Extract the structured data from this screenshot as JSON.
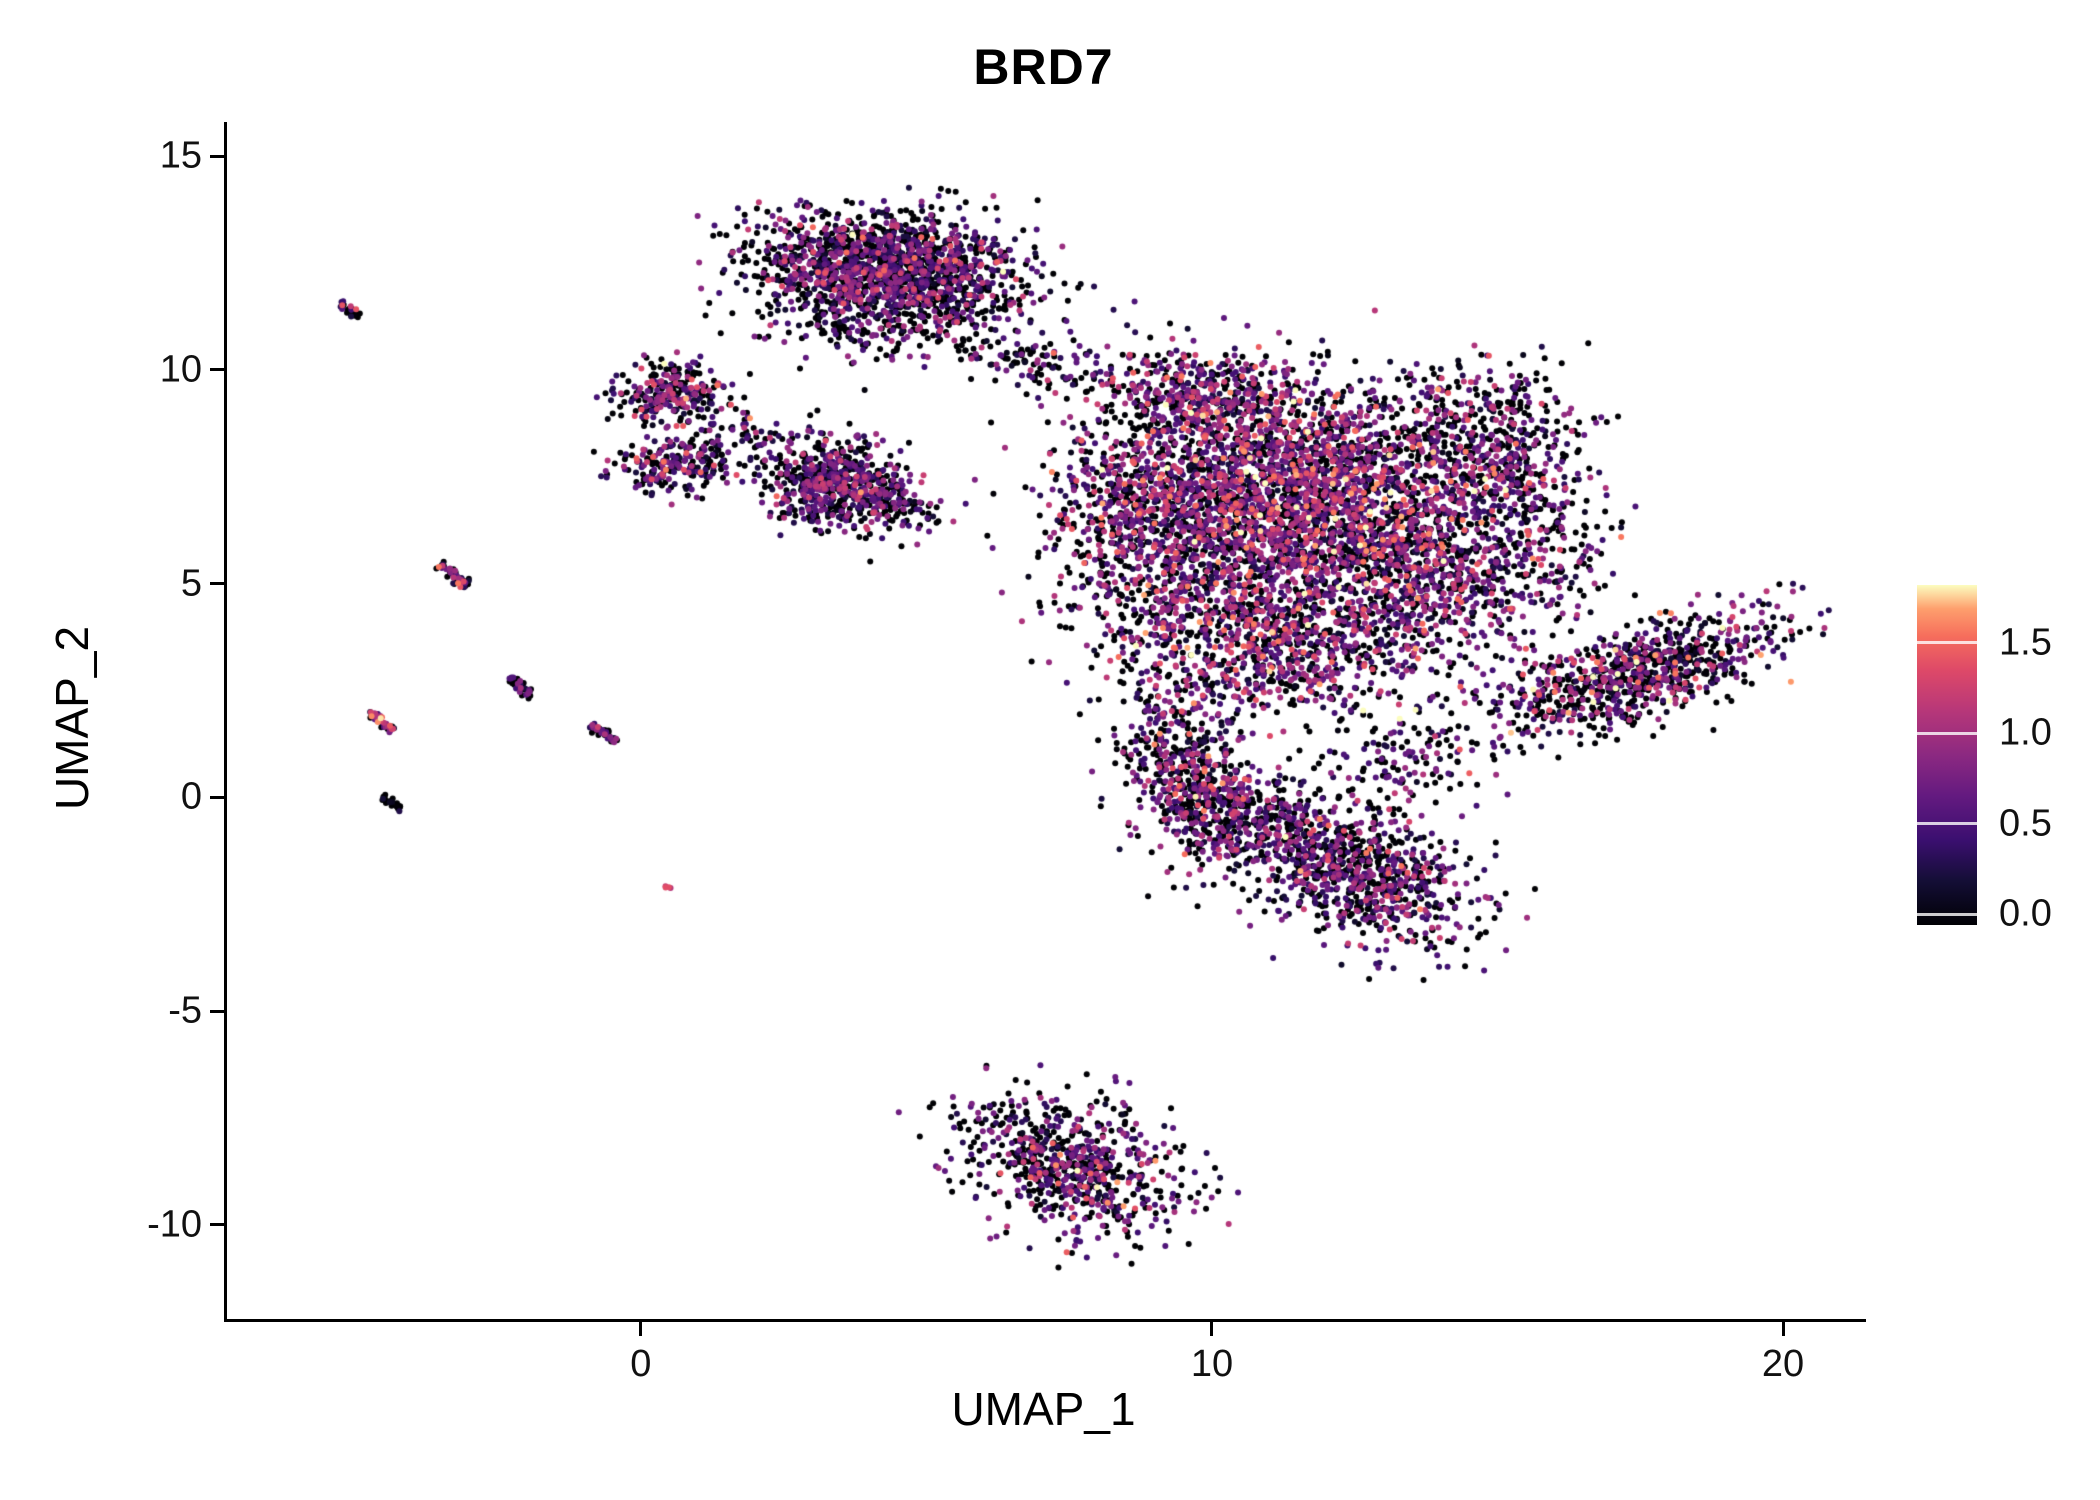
{
  "chart_data": {
    "type": "scatter",
    "title": "BRD7",
    "xlabel": "UMAP_1",
    "ylabel": "UMAP_2",
    "xlim": [
      -7.3,
      21.4
    ],
    "ylim": [
      -12.2,
      15.8
    ],
    "grid": false,
    "xticks": {
      "values": [
        0,
        10,
        20
      ],
      "labels": [
        "0",
        "10",
        "20"
      ]
    },
    "yticks": {
      "values": [
        15,
        10,
        5,
        0,
        -5,
        -10
      ],
      "labels": [
        "15",
        "10",
        "5",
        "0",
        "-5",
        "-10"
      ]
    },
    "legend": {
      "position": "right",
      "vmin": -0.06,
      "vmax": 1.82,
      "ticks": [
        {
          "value": 1.5,
          "label": "1.5"
        },
        {
          "value": 1.0,
          "label": "1.0"
        },
        {
          "value": 0.5,
          "label": "0.5"
        },
        {
          "value": 0.0,
          "label": "0.0"
        }
      ]
    },
    "palette": {
      "name": "magma",
      "stops": [
        {
          "t": 0.0,
          "color": "#000004"
        },
        {
          "t": 0.13,
          "color": "#140e36"
        },
        {
          "t": 0.25,
          "color": "#3b0f70"
        },
        {
          "t": 0.38,
          "color": "#641a80"
        },
        {
          "t": 0.5,
          "color": "#8c2981"
        },
        {
          "t": 0.63,
          "color": "#b73779"
        },
        {
          "t": 0.75,
          "color": "#de4968"
        },
        {
          "t": 0.85,
          "color": "#f66e5c"
        },
        {
          "t": 0.93,
          "color": "#fe9f6d"
        },
        {
          "t": 1.0,
          "color": "#fcfdbf"
        }
      ]
    },
    "point_radius_px": 3.0,
    "seed": 1234,
    "clusters": [
      {
        "name": "top-main",
        "cx": 4.3,
        "cy": 12.4,
        "sx": 1.15,
        "sy": 0.62,
        "rot": -4,
        "n": 1500,
        "zero": 0.38,
        "mean": 0.55,
        "sd": 0.4
      },
      {
        "name": "top-main-south",
        "cx": 4.4,
        "cy": 11.2,
        "sx": 1.3,
        "sy": 0.5,
        "rot": 0,
        "n": 260,
        "zero": 0.45,
        "mean": 0.5,
        "sd": 0.4
      },
      {
        "name": "top-tail",
        "cx": 6.8,
        "cy": 10.2,
        "sx": 0.95,
        "sy": 0.28,
        "rot": -10,
        "n": 110,
        "zero": 0.5,
        "mean": 0.45,
        "sd": 0.4
      },
      {
        "name": "nw-upper",
        "cx": 0.45,
        "cy": 9.4,
        "sx": 0.5,
        "sy": 0.34,
        "rot": 0,
        "n": 270,
        "zero": 0.35,
        "mean": 0.6,
        "sd": 0.42
      },
      {
        "name": "nw-lower",
        "cx": 0.55,
        "cy": 7.8,
        "sx": 0.52,
        "sy": 0.3,
        "rot": 8,
        "n": 230,
        "zero": 0.35,
        "mean": 0.6,
        "sd": 0.42
      },
      {
        "name": "nw-bridge",
        "cx": 1.7,
        "cy": 8.6,
        "sx": 0.45,
        "sy": 0.25,
        "rot": 0,
        "n": 45,
        "zero": 0.45,
        "mean": 0.5,
        "sd": 0.4
      },
      {
        "name": "mid-left",
        "cx": 3.35,
        "cy": 7.4,
        "sx": 0.62,
        "sy": 0.5,
        "rot": -15,
        "n": 650,
        "zero": 0.4,
        "mean": 0.55,
        "sd": 0.4
      },
      {
        "name": "mid-left-tail",
        "cx": 4.4,
        "cy": 6.8,
        "sx": 0.5,
        "sy": 0.2,
        "rot": -20,
        "n": 70,
        "zero": 0.45,
        "mean": 0.5,
        "sd": 0.4
      },
      {
        "name": "central-main",
        "cx": 11.6,
        "cy": 7.0,
        "sx": 1.8,
        "sy": 1.3,
        "rot": -8,
        "n": 3000,
        "zero": 0.3,
        "mean": 0.75,
        "sd": 0.45
      },
      {
        "name": "central-left",
        "cx": 8.8,
        "cy": 6.3,
        "sx": 0.85,
        "sy": 1.25,
        "rot": 10,
        "n": 600,
        "zero": 0.33,
        "mean": 0.65,
        "sd": 0.42
      },
      {
        "name": "central-topleft",
        "cx": 9.8,
        "cy": 9.4,
        "sx": 1.0,
        "sy": 0.55,
        "rot": -8,
        "n": 420,
        "zero": 0.33,
        "mean": 0.7,
        "sd": 0.45
      },
      {
        "name": "central-right-arm",
        "cx": 14.9,
        "cy": 8.4,
        "sx": 0.8,
        "sy": 0.85,
        "rot": 25,
        "n": 400,
        "zero": 0.42,
        "mean": 0.6,
        "sd": 0.42
      },
      {
        "name": "central-lower",
        "cx": 11.0,
        "cy": 3.7,
        "sx": 1.5,
        "sy": 0.9,
        "rot": -5,
        "n": 1000,
        "zero": 0.33,
        "mean": 0.7,
        "sd": 0.45
      },
      {
        "name": "central-south-sparse",
        "cx": 9.4,
        "cy": 1.1,
        "sx": 0.55,
        "sy": 1.0,
        "rot": 0,
        "n": 300,
        "zero": 0.36,
        "mean": 0.65,
        "sd": 0.42
      },
      {
        "name": "central-right-mid",
        "cx": 13.9,
        "cy": 5.1,
        "sx": 1.0,
        "sy": 1.0,
        "rot": 0,
        "n": 550,
        "zero": 0.35,
        "mean": 0.65,
        "sd": 0.42
      },
      {
        "name": "right-fringe",
        "cx": 15.8,
        "cy": 6.0,
        "sx": 0.6,
        "sy": 1.1,
        "rot": 15,
        "n": 170,
        "zero": 0.46,
        "mean": 0.5,
        "sd": 0.4
      },
      {
        "name": "bridge-southeast",
        "cx": 13.3,
        "cy": 0.9,
        "sx": 0.8,
        "sy": 0.6,
        "rot": 20,
        "n": 140,
        "zero": 0.42,
        "mean": 0.6,
        "sd": 0.4
      },
      {
        "name": "east-wing",
        "cx": 17.4,
        "cy": 2.9,
        "sx": 1.35,
        "sy": 0.5,
        "rot": 24,
        "n": 850,
        "zero": 0.4,
        "mean": 0.65,
        "sd": 0.5
      },
      {
        "name": "south-upper",
        "cx": 10.0,
        "cy": -0.3,
        "sx": 0.62,
        "sy": 0.7,
        "rot": 0,
        "n": 420,
        "zero": 0.35,
        "mean": 0.65,
        "sd": 0.42
      },
      {
        "name": "south-main",
        "cx": 12.6,
        "cy": -1.9,
        "sx": 1.05,
        "sy": 0.75,
        "rot": -32,
        "n": 780,
        "zero": 0.38,
        "mean": 0.6,
        "sd": 0.42
      },
      {
        "name": "south-bridge",
        "cx": 11.3,
        "cy": -0.7,
        "sx": 0.6,
        "sy": 0.45,
        "rot": -20,
        "n": 160,
        "zero": 0.4,
        "mean": 0.6,
        "sd": 0.4
      },
      {
        "name": "bottom",
        "cx": 7.5,
        "cy": -8.6,
        "sx": 1.05,
        "sy": 0.72,
        "rot": -33,
        "n": 720,
        "zero": 0.38,
        "mean": 0.6,
        "sd": 0.42
      }
    ],
    "streaks": [
      {
        "name": "streak-far-nw",
        "x1": -5.3,
        "y1": 11.6,
        "x2": -5.0,
        "y2": 11.2,
        "n": 26,
        "jitter": 0.05,
        "zero": 0.45,
        "mean": 0.6,
        "sd": 0.4
      },
      {
        "name": "streak-west-5",
        "x1": -3.6,
        "y1": 5.5,
        "x2": -3.1,
        "y2": 4.95,
        "n": 50,
        "jitter": 0.06,
        "zero": 0.4,
        "mean": 0.6,
        "sd": 0.45
      },
      {
        "name": "streak-west-2a",
        "x1": -4.8,
        "y1": 2.0,
        "x2": -4.4,
        "y2": 1.55,
        "n": 40,
        "jitter": 0.05,
        "zero": 0.25,
        "mean": 0.9,
        "sd": 0.4
      },
      {
        "name": "streak-west-2b",
        "x1": -2.35,
        "y1": 2.8,
        "x2": -1.95,
        "y2": 2.35,
        "n": 38,
        "jitter": 0.05,
        "zero": 0.4,
        "mean": 0.55,
        "sd": 0.4
      },
      {
        "name": "streak-west-1",
        "x1": -0.9,
        "y1": 1.7,
        "x2": -0.5,
        "y2": 1.3,
        "n": 38,
        "jitter": 0.05,
        "zero": 0.4,
        "mean": 0.55,
        "sd": 0.4
      },
      {
        "name": "streak-west-0",
        "x1": -4.55,
        "y1": 0.05,
        "x2": -4.25,
        "y2": -0.3,
        "n": 22,
        "jitter": 0.04,
        "zero": 0.7,
        "mean": 0.3,
        "sd": 0.3
      },
      {
        "name": "dot-south-west",
        "x1": 0.35,
        "y1": -2.05,
        "x2": 0.5,
        "y2": -2.2,
        "n": 4,
        "jitter": 0.03,
        "zero": 0.1,
        "mean": 1.0,
        "sd": 0.3
      }
    ]
  }
}
